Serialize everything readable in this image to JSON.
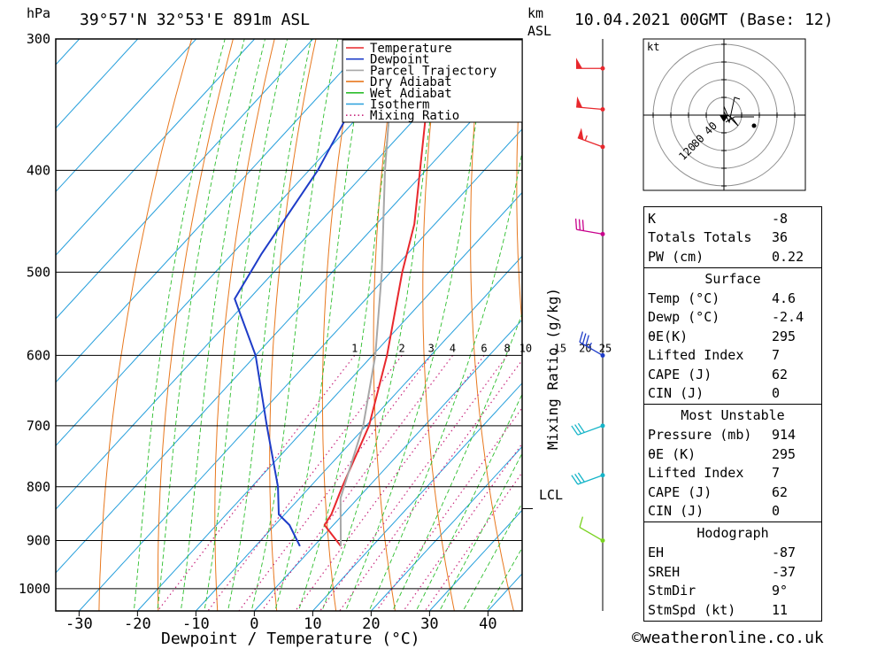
{
  "header": {
    "location": "39°57'N 32°53'E 891m ASL",
    "datetime": "10.04.2021 00GMT (Base: 12)",
    "hpa_unit": "hPa",
    "km_unit": "km",
    "asl_unit": "ASL",
    "credit": "©weatheronline.co.uk"
  },
  "chart_data": {
    "type": "line",
    "subtype": "skew-t log-p",
    "xlabel": "Dewpoint / Temperature (°C)",
    "ylabel": "hPa",
    "mixing_ratio_label": "Mixing Ratio (g/kg)",
    "x_ticks": [
      "-30",
      "-20",
      "-10",
      "0",
      "10",
      "20",
      "30",
      "40"
    ],
    "x_tick_values": [
      -30,
      -20,
      -10,
      0,
      10,
      20,
      30,
      40
    ],
    "pressure_levels": [
      300,
      400,
      500,
      600,
      700,
      800,
      900,
      1000
    ],
    "pressure_range": [
      300,
      1050
    ],
    "mixing_ratio_labels": [
      "1",
      "2",
      "3",
      "4",
      "6",
      "8",
      "10",
      "15",
      "20",
      "25"
    ],
    "mixing_ratio_values": [
      1,
      2,
      3,
      4,
      6,
      8,
      10,
      15,
      20,
      25
    ],
    "lcl_label": "LCL",
    "lcl_pressure": 820,
    "legend": {
      "position": "top-right",
      "entries": [
        {
          "name": "Temperature",
          "color": "#e8282d",
          "style": "solid"
        },
        {
          "name": "Dewpoint",
          "color": "#1e3cc8",
          "style": "solid"
        },
        {
          "name": "Parcel Trajectory",
          "color": "#a8a8a8",
          "style": "solid"
        },
        {
          "name": "Dry Adiabat",
          "color": "#e8781e",
          "style": "solid"
        },
        {
          "name": "Wet Adiabat",
          "color": "#2dbe2d",
          "style": "solid"
        },
        {
          "name": "Isotherm",
          "color": "#28a0dc",
          "style": "solid"
        },
        {
          "name": "Mixing Ratio",
          "color": "#c8287d",
          "style": "dotted"
        }
      ]
    },
    "series": [
      {
        "name": "Temperature",
        "color": "#e8282d",
        "points": [
          [
            911,
            4.6
          ],
          [
            870,
            -1.5
          ],
          [
            850,
            -2.0
          ],
          [
            800,
            -4.5
          ],
          [
            700,
            -9.5
          ],
          [
            600,
            -17.5
          ],
          [
            500,
            -28.0
          ],
          [
            450,
            -33.5
          ],
          [
            400,
            -41.0
          ],
          [
            350,
            -49.5
          ],
          [
            300,
            -57.5
          ]
        ]
      },
      {
        "name": "Dewpoint",
        "color": "#1e3cc8",
        "points": [
          [
            911,
            -2.4
          ],
          [
            870,
            -7.5
          ],
          [
            850,
            -11.0
          ],
          [
            800,
            -15.5
          ],
          [
            700,
            -27.0
          ],
          [
            600,
            -40.0
          ],
          [
            530,
            -52.5
          ],
          [
            480,
            -55.0
          ],
          [
            400,
            -58.5
          ],
          [
            300,
            -67.0
          ]
        ]
      },
      {
        "name": "Parcel Trajectory",
        "color": "#a8a8a8",
        "points": [
          [
            911,
            4.6
          ],
          [
            820,
            -3.0
          ],
          [
            700,
            -10.5
          ],
          [
            600,
            -19.5
          ],
          [
            500,
            -31.5
          ],
          [
            400,
            -47.0
          ],
          [
            300,
            -66.0
          ]
        ]
      }
    ],
    "wind_barbs": [
      {
        "pressure": 320,
        "dir_deg": 270,
        "speed_kt": 50,
        "color": "#e8282d"
      },
      {
        "pressure": 350,
        "dir_deg": 275,
        "speed_kt": 50,
        "color": "#e8282d"
      },
      {
        "pressure": 380,
        "dir_deg": 290,
        "speed_kt": 55,
        "color": "#e8282d"
      },
      {
        "pressure": 460,
        "dir_deg": 280,
        "speed_kt": 30,
        "color": "#c8008c"
      },
      {
        "pressure": 600,
        "dir_deg": 300,
        "speed_kt": 35,
        "color": "#1e3cc8"
      },
      {
        "pressure": 700,
        "dir_deg": 250,
        "speed_kt": 30,
        "color": "#14b4c8"
      },
      {
        "pressure": 780,
        "dir_deg": 250,
        "speed_kt": 30,
        "color": "#14b4c8"
      },
      {
        "pressure": 900,
        "dir_deg": 300,
        "speed_kt": 10,
        "color": "#78d21e"
      }
    ]
  },
  "hodograph": {
    "unit_label": "kt",
    "ring_labels": [
      "40",
      "80",
      "120"
    ]
  },
  "indices": {
    "general": [
      {
        "label": "K",
        "value": "-8"
      },
      {
        "label": "Totals Totals",
        "value": "36"
      },
      {
        "label": "PW (cm)",
        "value": "0.22"
      }
    ],
    "surface_title": "Surface",
    "surface": [
      {
        "label": "Temp (°C)",
        "value": "4.6"
      },
      {
        "label": "Dewp (°C)",
        "value": "-2.4"
      },
      {
        "label": "θE(K)",
        "value": "295"
      },
      {
        "label": "Lifted Index",
        "value": "7"
      },
      {
        "label": "CAPE (J)",
        "value": "62"
      },
      {
        "label": "CIN (J)",
        "value": "0"
      }
    ],
    "unstable_title": "Most Unstable",
    "unstable": [
      {
        "label": "Pressure (mb)",
        "value": "914"
      },
      {
        "label": "θE (K)",
        "value": "295"
      },
      {
        "label": "Lifted Index",
        "value": "7"
      },
      {
        "label": "CAPE (J)",
        "value": "62"
      },
      {
        "label": "CIN (J)",
        "value": "0"
      }
    ],
    "hodograph_title": "Hodograph",
    "hodo": [
      {
        "label": "EH",
        "value": "-87"
      },
      {
        "label": "SREH",
        "value": "-37"
      },
      {
        "label": "StmDir",
        "value": "9°"
      },
      {
        "label": "StmSpd (kt)",
        "value": "11"
      }
    ]
  }
}
